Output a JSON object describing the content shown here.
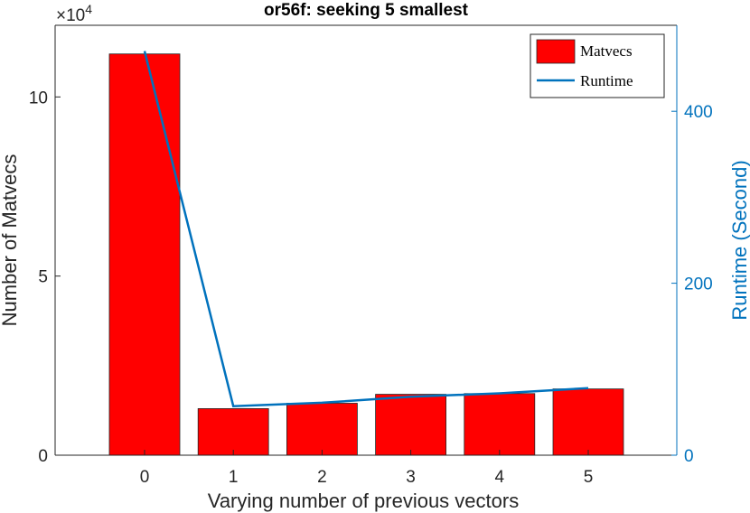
{
  "chart_data": {
    "type": "bar",
    "title": "or56f: seeking 5 smallest",
    "xlabel": "Varying number of previous vectors",
    "ylabel": "Number of Matvecs",
    "y2label": "Runtime (Second)",
    "categories": [
      "0",
      "1",
      "2",
      "3",
      "4",
      "5"
    ],
    "ylim": [
      0,
      120000
    ],
    "y2lim": [
      0,
      500
    ],
    "y_exponent_label": "×10",
    "y_exponent_power": "4",
    "y_ticks": [
      {
        "value": 0,
        "label": "0"
      },
      {
        "value": 50000,
        "label": "5"
      },
      {
        "value": 100000,
        "label": "10"
      }
    ],
    "y2_ticks": [
      {
        "value": 0,
        "label": "0"
      },
      {
        "value": 200,
        "label": "200"
      },
      {
        "value": 400,
        "label": "400"
      }
    ],
    "series": [
      {
        "name": "Matvecs",
        "kind": "bar",
        "axis": "left",
        "color": "#ff0000",
        "values": [
          112000,
          13000,
          14500,
          17000,
          17200,
          18500
        ]
      },
      {
        "name": "Runtime",
        "kind": "line",
        "axis": "right",
        "color": "#0072bd",
        "values": [
          470,
          57,
          61,
          68,
          72,
          78
        ]
      }
    ],
    "legend_position": "top-right",
    "grid": false
  }
}
